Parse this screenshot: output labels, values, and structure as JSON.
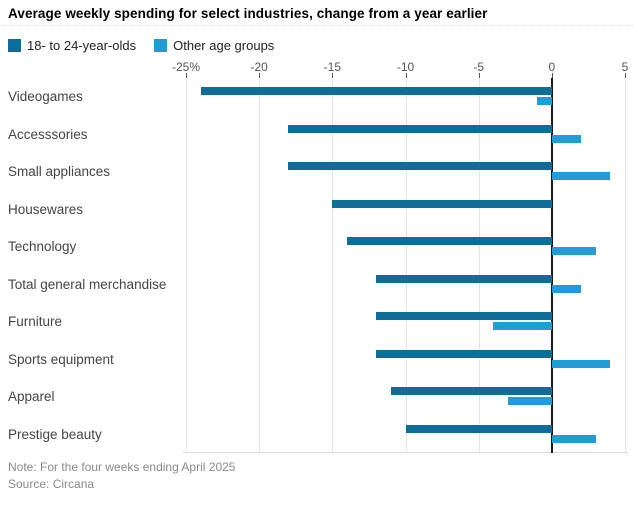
{
  "title": "Average weekly spending for select industries, change from a year earlier",
  "legend": {
    "items": [
      {
        "label": "18- to 24-year-olds",
        "color": "#0f6d9a"
      },
      {
        "label": "Other age groups",
        "color": "#209cd8"
      }
    ]
  },
  "note": "Note: For the four weeks ending April 2025",
  "source": "Source: Circana",
  "chart_data": {
    "type": "bar",
    "orientation": "horizontal",
    "title": "Average weekly spending for select industries, change from a year earlier",
    "categories": [
      "Videogames",
      "Accesssories",
      "Small appliances",
      "Housewares",
      "Technology",
      "Total general merchandise",
      "Furniture",
      "Sports equipment",
      "Apparel",
      "Prestige beauty"
    ],
    "series": [
      {
        "name": "18- to 24-year-olds",
        "color": "#0f6d9a",
        "values": [
          -24,
          -18,
          -18,
          -15,
          -14,
          -12,
          -12,
          -12,
          -11,
          -10
        ]
      },
      {
        "name": "Other age groups",
        "color": "#209cd8",
        "values": [
          -1,
          2,
          4,
          0,
          3,
          2,
          -4,
          4,
          -3,
          3
        ]
      }
    ],
    "xlim": [
      -25,
      5
    ],
    "ticks": [
      {
        "value": -25,
        "label": "-25%"
      },
      {
        "value": -20,
        "label": "-20"
      },
      {
        "value": -15,
        "label": "-15"
      },
      {
        "value": -10,
        "label": "-10"
      },
      {
        "value": -5,
        "label": "-5"
      },
      {
        "value": 0,
        "label": "0"
      },
      {
        "value": 5,
        "label": "5"
      }
    ],
    "grid": true,
    "legend_position": "top",
    "unit": "%"
  }
}
